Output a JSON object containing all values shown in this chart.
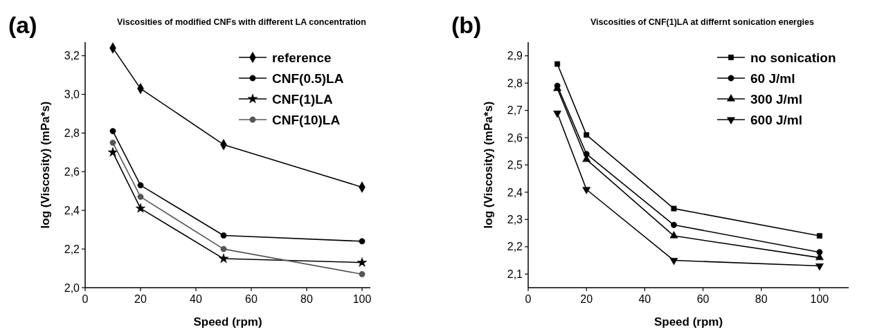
{
  "chart_data": [
    {
      "type": "line",
      "title": "Viscosities of modified CNFs with different LA concentration",
      "xlabel": "Speed (rpm)",
      "ylabel": "log (Viscosity) (mPa*s)",
      "annotations": [
        "(a)"
      ],
      "x": [
        10,
        20,
        50,
        100
      ],
      "xlim": [
        0,
        103
      ],
      "xticks": [
        0,
        20,
        40,
        60,
        80,
        100
      ],
      "ylim": [
        2.0,
        3.27
      ],
      "yticks": [
        {
          "value": 2.0,
          "label": "2,0"
        },
        {
          "value": 2.2,
          "label": "2,2"
        },
        {
          "value": 2.4,
          "label": "2,4"
        },
        {
          "value": 2.6,
          "label": "2,6"
        },
        {
          "value": 2.8,
          "label": "2,8"
        },
        {
          "value": 3.0,
          "label": "3,0"
        },
        {
          "value": 3.2,
          "label": "3,2"
        }
      ],
      "legend": "top right",
      "grid": false,
      "line_style": "solid",
      "series": [
        {
          "name": "reference",
          "color": "#000000",
          "marker": "diamond",
          "values": [
            3.24,
            3.03,
            2.74,
            2.52
          ]
        },
        {
          "name": "CNF(0.5)LA",
          "color": "#000000",
          "marker": "circle",
          "values": [
            2.81,
            2.53,
            2.27,
            2.24
          ]
        },
        {
          "name": "CNF(1)LA",
          "color": "#000000",
          "marker": "star",
          "values": [
            2.7,
            2.41,
            2.15,
            2.13
          ]
        },
        {
          "name": "CNF(10)LA",
          "color": "#555555",
          "marker": "circle",
          "values": [
            2.75,
            2.47,
            2.2,
            2.07
          ]
        }
      ]
    },
    {
      "type": "line",
      "title": "Viscosities of CNF(1)LA at differnt sonication energies",
      "xlabel": "Speed (rpm)",
      "ylabel": "log (Viscosity) (mPa*s)",
      "annotations": [
        "(b)"
      ],
      "x": [
        10,
        20,
        50,
        100
      ],
      "xlim": [
        0,
        110
      ],
      "xticks": [
        0,
        20,
        40,
        60,
        80,
        100
      ],
      "ylim": [
        2.05,
        2.95
      ],
      "yticks": [
        {
          "value": 2.1,
          "label": "2,1"
        },
        {
          "value": 2.2,
          "label": "2,2"
        },
        {
          "value": 2.3,
          "label": "2,3"
        },
        {
          "value": 2.4,
          "label": "2,4"
        },
        {
          "value": 2.5,
          "label": "2,5"
        },
        {
          "value": 2.6,
          "label": "2,6"
        },
        {
          "value": 2.7,
          "label": "2,7"
        },
        {
          "value": 2.8,
          "label": "2,8"
        },
        {
          "value": 2.9,
          "label": "2,9"
        }
      ],
      "legend": "top right",
      "grid": false,
      "line_style": "solid",
      "series": [
        {
          "name": "no sonication",
          "color": "#000000",
          "marker": "square",
          "values": [
            2.87,
            2.61,
            2.34,
            2.24
          ]
        },
        {
          "name": "60 J/ml",
          "color": "#000000",
          "marker": "circle",
          "values": [
            2.79,
            2.54,
            2.28,
            2.18
          ]
        },
        {
          "name": "300 J/ml",
          "color": "#000000",
          "marker": "triangle",
          "values": [
            2.78,
            2.52,
            2.24,
            2.16
          ]
        },
        {
          "name": "600 J/ml",
          "color": "#000000",
          "marker": "triangle-down",
          "values": [
            2.69,
            2.41,
            2.15,
            2.13
          ]
        }
      ]
    }
  ]
}
